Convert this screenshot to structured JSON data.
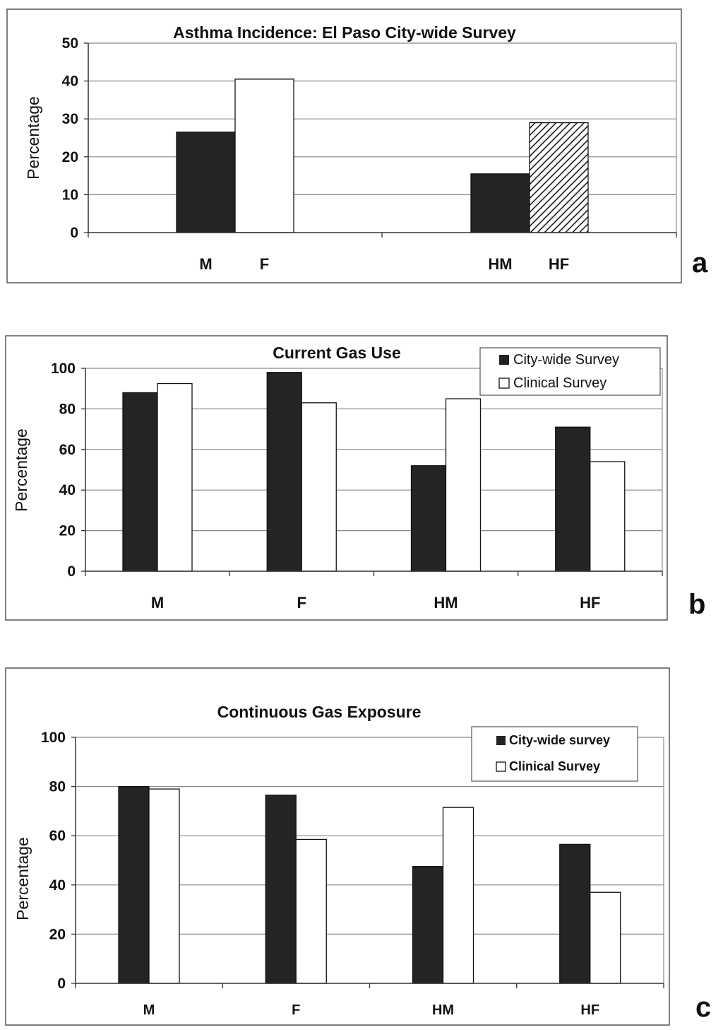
{
  "chart_data": [
    {
      "panel_label": "a",
      "type": "bar",
      "title": "Asthma Incidence: El Paso City-wide Survey",
      "ylabel": "Percentage",
      "xlabel": "",
      "ylim": [
        0,
        50
      ],
      "yticks": [
        0,
        10,
        20,
        30,
        40,
        50
      ],
      "grid": true,
      "groups": [
        {
          "bars": [
            {
              "label": "M",
              "value": 26.5,
              "fill": "dark"
            },
            {
              "label": "F",
              "value": 40.5,
              "fill": "white"
            }
          ]
        },
        {
          "bars": [
            {
              "label": "HM",
              "value": 15.5,
              "fill": "dark"
            },
            {
              "label": "HF",
              "value": 29,
              "fill": "hatch"
            }
          ]
        }
      ]
    },
    {
      "panel_label": "b",
      "type": "bar",
      "title": "Current Gas Use",
      "ylabel": "Percentage",
      "xlabel": "",
      "ylim": [
        0,
        100
      ],
      "yticks": [
        0,
        20,
        40,
        60,
        80,
        100
      ],
      "grid": true,
      "legend_position": "top-right",
      "categories": [
        "M",
        "F",
        "HM",
        "HF"
      ],
      "series": [
        {
          "name": "City-wide Survey",
          "fill": "dark",
          "values": [
            88,
            98,
            52,
            71
          ]
        },
        {
          "name": "Clinical Survey",
          "fill": "white",
          "values": [
            92.5,
            83,
            85,
            54
          ]
        }
      ]
    },
    {
      "panel_label": "c",
      "type": "bar",
      "title": "Continuous Gas Exposure",
      "ylabel": "Percentage",
      "xlabel": "",
      "ylim": [
        0,
        100
      ],
      "yticks": [
        0,
        20,
        40,
        60,
        80,
        100
      ],
      "grid": true,
      "legend_position": "top-right",
      "categories": [
        "M",
        "F",
        "HM",
        "HF"
      ],
      "series": [
        {
          "name": "City-wide survey",
          "fill": "dark",
          "values": [
            80,
            76.5,
            47.5,
            56.5
          ]
        },
        {
          "name": "Clinical Survey",
          "fill": "white",
          "values": [
            79,
            58.5,
            71.5,
            37
          ]
        }
      ]
    }
  ]
}
